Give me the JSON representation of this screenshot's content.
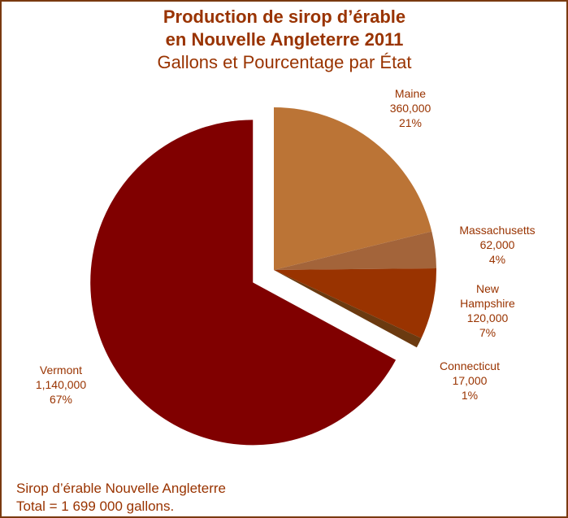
{
  "chart_data": {
    "type": "pie",
    "title": "Production de sirop d’érable",
    "title_line2": "en Nouvelle Angleterre 2011",
    "subtitle": "Gallons et  Pourcentage par État",
    "categories": [
      "Maine",
      "Massachusetts",
      "New Hampshire",
      "Connecticut",
      "Vermont"
    ],
    "values": [
      360000,
      62000,
      120000,
      17000,
      1140000
    ],
    "value_labels": [
      "360,000",
      "62,000",
      "120,000",
      "17,000",
      "1,140,000"
    ],
    "percent_labels": [
      "21%",
      "4%",
      "7%",
      "1%",
      "67%"
    ],
    "colors": [
      "#bb7436",
      "#a3643a",
      "#993300",
      "#6b3a10",
      "#800000"
    ],
    "exploded": "Vermont",
    "footnote": "Sirop d’érable Nouvelle Angleterre",
    "footnote_line2": "Total = 1 699 000 gallons."
  }
}
